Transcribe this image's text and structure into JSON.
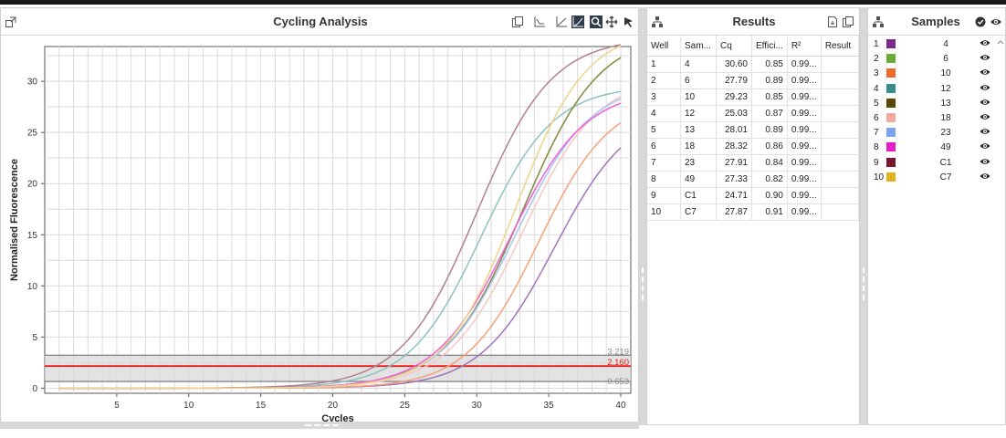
{
  "chart_panel": {
    "title": "Cycling Analysis",
    "icons": [
      "expand-icon",
      "copy-icon",
      "baseline-icon",
      "linear-scale-icon",
      "log-scale-icon",
      "zoom-icon",
      "pan-icon",
      "select-icon"
    ]
  },
  "results_panel": {
    "title": "Results",
    "columns": [
      "Well",
      "Sam...",
      "Cq",
      "Effici...",
      "R²",
      "Result"
    ],
    "rows": [
      [
        "1",
        "4",
        "30.60",
        "0.85",
        "0.99...",
        ""
      ],
      [
        "2",
        "6",
        "27.79",
        "0.89",
        "0.99...",
        ""
      ],
      [
        "3",
        "10",
        "29.23",
        "0.85",
        "0.99...",
        ""
      ],
      [
        "4",
        "12",
        "25.03",
        "0.87",
        "0.99...",
        ""
      ],
      [
        "5",
        "13",
        "28.01",
        "0.89",
        "0.99...",
        ""
      ],
      [
        "6",
        "18",
        "28.32",
        "0.86",
        "0.99...",
        ""
      ],
      [
        "7",
        "23",
        "27.91",
        "0.84",
        "0.99...",
        ""
      ],
      [
        "8",
        "49",
        "27.33",
        "0.82",
        "0.99...",
        ""
      ],
      [
        "9",
        "C1",
        "24.71",
        "0.90",
        "0.99...",
        ""
      ],
      [
        "10",
        "C7",
        "27.87",
        "0.91",
        "0.99...",
        ""
      ]
    ]
  },
  "samples_panel": {
    "title": "Samples",
    "items": [
      {
        "index": "1",
        "name": "4",
        "color": "#7b2d8b"
      },
      {
        "index": "2",
        "name": "6",
        "color": "#6aae35"
      },
      {
        "index": "3",
        "name": "10",
        "color": "#f06a28"
      },
      {
        "index": "4",
        "name": "12",
        "color": "#3a8d8d"
      },
      {
        "index": "5",
        "name": "13",
        "color": "#5a4a08"
      },
      {
        "index": "6",
        "name": "18",
        "color": "#f0a8a0"
      },
      {
        "index": "7",
        "name": "23",
        "color": "#7ba4f0"
      },
      {
        "index": "8",
        "name": "49",
        "color": "#e81cc8"
      },
      {
        "index": "9",
        "name": "C1",
        "color": "#7a1430"
      },
      {
        "index": "10",
        "name": "C7",
        "color": "#e0b41c"
      }
    ]
  },
  "chart_data": {
    "type": "line",
    "xlabel": "Cycles",
    "ylabel": "Normalised Fluorescence",
    "xlim": [
      0,
      40.7
    ],
    "ylim": [
      -0.5,
      33.4
    ],
    "xticks": [
      5,
      10,
      15,
      20,
      25,
      30,
      35,
      40
    ],
    "yticks": [
      0,
      5,
      10,
      15,
      20,
      25,
      30
    ],
    "grid": true,
    "thresholds": [
      {
        "label": "3.219",
        "value": 3.219,
        "color": "#888888"
      },
      {
        "label": "2.160",
        "value": 2.16,
        "color": "#e8201c"
      },
      {
        "label": "0.653",
        "value": 0.653,
        "color": "#888888"
      }
    ],
    "threshold_band": [
      0.653,
      3.219
    ],
    "series": [
      {
        "name": "4",
        "color": "#a274b8",
        "plateau": 27.5,
        "midpoint": 35.4,
        "scale": 2.6,
        "end_value": 23.1
      },
      {
        "name": "6",
        "color": "#a4c878",
        "plateau": 34.8,
        "midpoint": 33.2,
        "scale": 2.65,
        "end_value": 29.6
      },
      {
        "name": "10",
        "color": "#f4a27a",
        "plateau": 28.6,
        "midpoint": 34.3,
        "scale": 2.5,
        "end_value": 25.1
      },
      {
        "name": "12",
        "color": "#8ec1c1",
        "plateau": 29.6,
        "midpoint": 30.3,
        "scale": 2.5,
        "end_value": 29.1
      },
      {
        "name": "13",
        "color": "#8a8c48",
        "plateau": 34.8,
        "midpoint": 33.2,
        "scale": 2.65,
        "end_value": 29.6
      },
      {
        "name": "18",
        "color": "#f6c8c2",
        "plateau": 30.6,
        "midpoint": 33.2,
        "scale": 2.6,
        "end_value": 27.5
      },
      {
        "name": "23",
        "color": "#a8c4f6",
        "plateau": 30.0,
        "midpoint": 32.7,
        "scale": 2.6,
        "end_value": 27.4
      },
      {
        "name": "49",
        "color": "#ee62d8",
        "plateau": 29.3,
        "midpoint": 32.3,
        "scale": 2.6,
        "end_value": 27.0
      },
      {
        "name": "C1",
        "color": "#b0808e",
        "plateau": 34.3,
        "midpoint": 30.0,
        "scale": 2.6,
        "end_value": 32.8
      },
      {
        "name": "C7",
        "color": "#ecd488",
        "plateau": 35.2,
        "midpoint": 32.7,
        "scale": 2.45,
        "end_value": 31.4
      }
    ]
  }
}
